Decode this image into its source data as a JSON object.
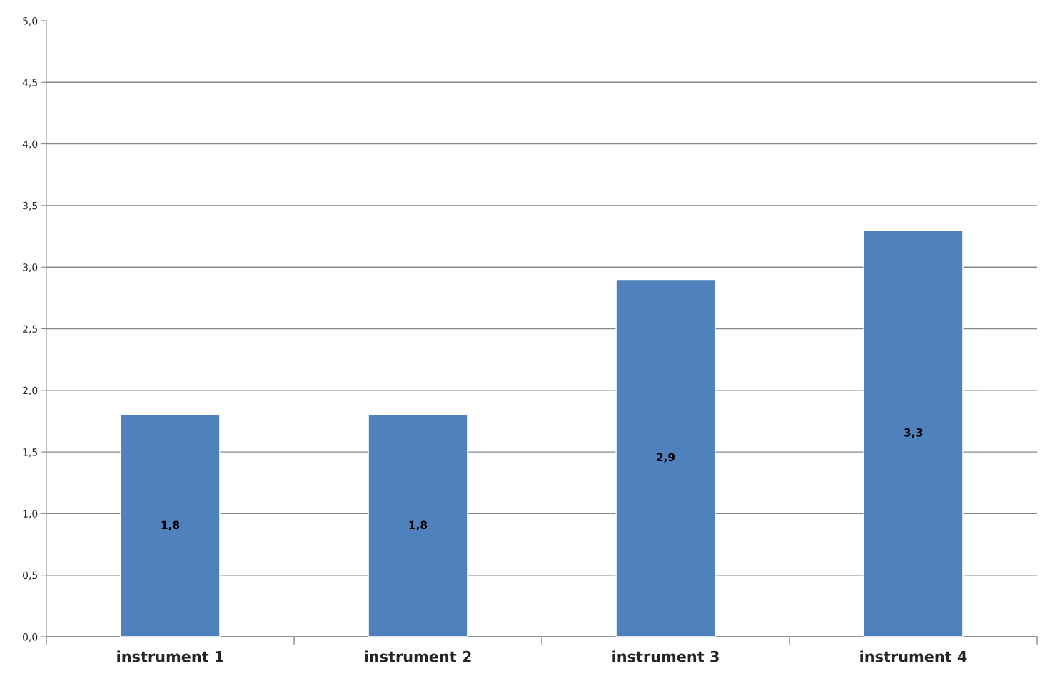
{
  "chart_data": {
    "type": "bar",
    "categories": [
      "instrument 1",
      "instrument 2",
      "instrument 3",
      "instrument 4"
    ],
    "values": [
      1.8,
      1.8,
      2.9,
      3.3
    ],
    "value_labels": [
      "1,8",
      "1,8",
      "2,9",
      "3,3"
    ],
    "color": "#4f81bd",
    "ylim": [
      0,
      5
    ],
    "yticks": [
      {
        "value": 0,
        "label": "0,0"
      },
      {
        "value": 0.5,
        "label": "0,5"
      },
      {
        "value": 1,
        "label": "1,0"
      },
      {
        "value": 1.5,
        "label": "1,5"
      },
      {
        "value": 2,
        "label": "2,0"
      },
      {
        "value": 2.5,
        "label": "2,5"
      },
      {
        "value": 3,
        "label": "3,0"
      },
      {
        "value": 3.5,
        "label": "3,5"
      },
      {
        "value": 4,
        "label": "4,0"
      },
      {
        "value": 4.5,
        "label": "4,5"
      },
      {
        "value": 5,
        "label": "5,0"
      }
    ],
    "grid": "y",
    "legend": false
  }
}
